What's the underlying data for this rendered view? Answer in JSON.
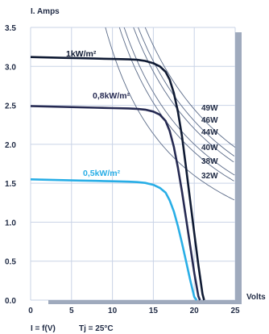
{
  "chart_data": {
    "type": "line",
    "y_axis_title": "I. Amps",
    "x_axis_title": "Volts",
    "xlim": [
      0,
      25
    ],
    "ylim": [
      0,
      3.5
    ],
    "x_ticks": [
      0,
      5,
      10,
      15,
      20,
      25
    ],
    "x_tick_labels": [
      "0",
      "5",
      "10",
      "15",
      "20",
      "25"
    ],
    "y_ticks": [
      0,
      0.5,
      1.0,
      1.5,
      2.0,
      2.5,
      3.0,
      3.5
    ],
    "y_tick_labels": [
      "0.0",
      "0.5",
      "1.0",
      "1.5",
      "2.0",
      "2.5",
      "3.0",
      "3.5"
    ],
    "grid": true,
    "series": [
      {
        "name": "1kW/m²",
        "color": "#0f1a33",
        "x": [
          0,
          2,
          4,
          6,
          8,
          10,
          12,
          13,
          14,
          15,
          15.8,
          16.5,
          17,
          17.5,
          18,
          18.5,
          19,
          19.5,
          20,
          20.5,
          21,
          21.2
        ],
        "y": [
          3.12,
          3.115,
          3.11,
          3.105,
          3.1,
          3.095,
          3.09,
          3.085,
          3.07,
          3.04,
          3.0,
          2.93,
          2.83,
          2.66,
          2.42,
          2.1,
          1.7,
          1.28,
          0.86,
          0.45,
          0.08,
          0.0
        ]
      },
      {
        "name": "0,8kW/m²",
        "color": "#262a52",
        "x": [
          0,
          2,
          4,
          6,
          8,
          10,
          12,
          13,
          14,
          15,
          15.8,
          16.5,
          17,
          17.5,
          18,
          18.5,
          19,
          19.5,
          20,
          20.5,
          20.7
        ],
        "y": [
          2.49,
          2.485,
          2.48,
          2.475,
          2.47,
          2.465,
          2.46,
          2.455,
          2.445,
          2.42,
          2.38,
          2.3,
          2.17,
          1.97,
          1.7,
          1.39,
          1.05,
          0.7,
          0.35,
          0.05,
          0.0
        ]
      },
      {
        "name": "0,5kW/m²",
        "color": "#29aee6",
        "x": [
          0,
          2,
          4,
          6,
          8,
          10,
          12,
          13,
          14,
          15,
          15.8,
          16.5,
          17,
          17.5,
          18,
          18.5,
          19,
          19.5,
          20,
          20.3
        ],
        "y": [
          1.55,
          1.545,
          1.54,
          1.535,
          1.53,
          1.525,
          1.52,
          1.515,
          1.505,
          1.48,
          1.44,
          1.38,
          1.28,
          1.14,
          0.95,
          0.73,
          0.5,
          0.26,
          0.04,
          0.0
        ]
      }
    ],
    "power_curves": {
      "color": "#5b6b88",
      "labels": [
        "49W",
        "46W",
        "44W",
        "40W",
        "38W",
        "32W"
      ],
      "watts": [
        49,
        46,
        44,
        40,
        38,
        32
      ]
    },
    "footer": {
      "formula": "I = f(V)",
      "condition": "Tj = 25°C"
    }
  }
}
